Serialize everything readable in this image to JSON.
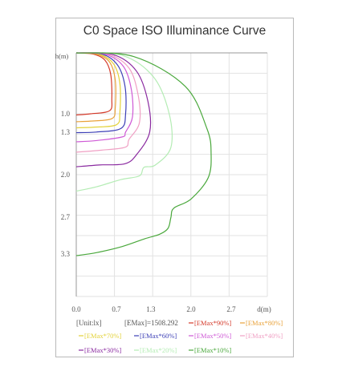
{
  "chart_data": {
    "type": "line",
    "title": "C0 Space ISO Illuminance Curve",
    "ylabel": "h(m)",
    "xlabel": "d(m)",
    "x_ticks": [
      "0.0",
      "0.7",
      "1.3",
      "2.0",
      "2.7"
    ],
    "y_ticks": [
      "1.0",
      "1.3",
      "2.0",
      "2.7",
      "3.3"
    ],
    "x_tick_values": [
      0.0,
      0.7,
      1.3,
      2.0,
      2.7
    ],
    "y_tick_values": [
      1.0,
      1.3,
      2.0,
      2.7,
      3.3
    ],
    "xlim": [
      0,
      3.33
    ],
    "ylim": [
      0,
      4.0
    ],
    "grid": true,
    "unit_label": "[Unit:lx]",
    "emax_label": "[EMax]=1508.292",
    "series": [
      {
        "name": "[EMax*90%]",
        "color": "#d43a2a",
        "points": [
          [
            0,
            0
          ],
          [
            0.3,
            0.02
          ],
          [
            0.5,
            0.12
          ],
          [
            0.6,
            0.35
          ],
          [
            0.62,
            0.75
          ],
          [
            0.58,
            0.95
          ],
          [
            0.25,
            1.0
          ],
          [
            0,
            1.02
          ]
        ]
      },
      {
        "name": "[EMax*80%]",
        "color": "#e9a23a",
        "points": [
          [
            0,
            0
          ],
          [
            0.35,
            0.02
          ],
          [
            0.58,
            0.15
          ],
          [
            0.68,
            0.45
          ],
          [
            0.68,
            0.9
          ],
          [
            0.62,
            1.08
          ],
          [
            0.25,
            1.12
          ],
          [
            0,
            1.13
          ]
        ]
      },
      {
        "name": "[EMax*70%]",
        "color": "#e3d23a",
        "points": [
          [
            0,
            0
          ],
          [
            0.4,
            0.02
          ],
          [
            0.65,
            0.18
          ],
          [
            0.76,
            0.5
          ],
          [
            0.76,
            0.98
          ],
          [
            0.7,
            1.18
          ],
          [
            0.3,
            1.22
          ],
          [
            0,
            1.23
          ]
        ]
      },
      {
        "name": "[EMax*60%]",
        "color": "#3c3fb6",
        "points": [
          [
            0,
            0
          ],
          [
            0.45,
            0.02
          ],
          [
            0.72,
            0.2
          ],
          [
            0.85,
            0.55
          ],
          [
            0.86,
            1.0
          ],
          [
            0.78,
            1.24
          ],
          [
            0.35,
            1.3
          ],
          [
            0,
            1.31
          ]
        ]
      },
      {
        "name": "[EMax*50%]",
        "color": "#cf5ad6",
        "points": [
          [
            0,
            0
          ],
          [
            0.5,
            0.02
          ],
          [
            0.82,
            0.22
          ],
          [
            0.96,
            0.6
          ],
          [
            0.98,
            1.05
          ],
          [
            0.86,
            1.3
          ],
          [
            0.8,
            1.38
          ],
          [
            0.35,
            1.44
          ],
          [
            0,
            1.46
          ]
        ]
      },
      {
        "name": "[EMax*40%]",
        "color": "#f0a0c4",
        "points": [
          [
            0,
            0
          ],
          [
            0.55,
            0.02
          ],
          [
            0.92,
            0.25
          ],
          [
            1.08,
            0.7
          ],
          [
            1.1,
            1.15
          ],
          [
            0.92,
            1.42
          ],
          [
            0.85,
            1.55
          ],
          [
            0.4,
            1.6
          ],
          [
            0,
            1.63
          ]
        ]
      },
      {
        "name": "[EMax*30%]",
        "color": "#8a2aa0",
        "points": [
          [
            0,
            0
          ],
          [
            0.65,
            0.03
          ],
          [
            1.05,
            0.3
          ],
          [
            1.25,
            0.8
          ],
          [
            1.28,
            1.3
          ],
          [
            1.06,
            1.66
          ],
          [
            0.85,
            1.82
          ],
          [
            0.4,
            1.84
          ],
          [
            0,
            1.87
          ]
        ]
      },
      {
        "name": "[EMax*20%]",
        "color": "#b4ecb4",
        "points": [
          [
            0,
            0
          ],
          [
            0.8,
            0.04
          ],
          [
            1.35,
            0.4
          ],
          [
            1.62,
            1.0
          ],
          [
            1.65,
            1.55
          ],
          [
            1.38,
            1.84
          ],
          [
            1.18,
            1.88
          ],
          [
            1.1,
            2.02
          ],
          [
            0.78,
            2.08
          ],
          [
            0.35,
            2.2
          ],
          [
            0,
            2.27
          ]
        ]
      },
      {
        "name": "[EMax*10%]",
        "color": "#4aa83c",
        "points": [
          [
            0,
            0
          ],
          [
            1.0,
            0.06
          ],
          [
            1.9,
            0.55
          ],
          [
            2.28,
            1.25
          ],
          [
            2.35,
            1.65
          ],
          [
            2.3,
            2.05
          ],
          [
            2.0,
            2.4
          ],
          [
            1.7,
            2.55
          ],
          [
            1.65,
            2.7
          ],
          [
            1.6,
            2.88
          ],
          [
            1.45,
            2.98
          ],
          [
            1.2,
            3.05
          ],
          [
            0.8,
            3.18
          ],
          [
            0.35,
            3.28
          ],
          [
            0,
            3.33
          ]
        ]
      }
    ]
  }
}
